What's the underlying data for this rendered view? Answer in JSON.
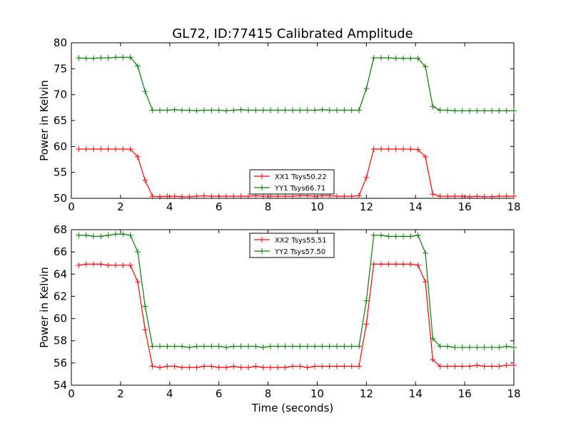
{
  "title": "GL72, ID:77415 Calibrated Amplitude",
  "colors": {
    "XX": "#ff0000",
    "YY": "#008000",
    "axis": "#000000",
    "background": "#ffffff"
  },
  "chart_data": [
    {
      "type": "line",
      "title": "GL72, ID:77415 Calibrated Amplitude",
      "xlabel": "",
      "ylabel": "Power in Kelvin",
      "xlim": [
        0,
        18
      ],
      "ylim": [
        50,
        80
      ],
      "xticks": [
        0,
        2,
        4,
        6,
        8,
        10,
        12,
        14,
        16,
        18
      ],
      "yticks": [
        50,
        55,
        60,
        65,
        70,
        75,
        80
      ],
      "grid": false,
      "legend_position": "bottom-center",
      "marker": "plus",
      "x": [
        0.3,
        0.6,
        0.9,
        1.2,
        1.5,
        1.8,
        2.1,
        2.4,
        2.7,
        3.0,
        3.3,
        3.6,
        3.9,
        4.2,
        4.5,
        4.8,
        5.1,
        5.4,
        5.7,
        6.0,
        6.3,
        6.6,
        6.9,
        7.2,
        7.5,
        7.8,
        8.1,
        8.4,
        8.7,
        9.0,
        9.3,
        9.6,
        9.9,
        10.2,
        10.5,
        10.8,
        11.1,
        11.4,
        11.7,
        12.0,
        12.3,
        12.6,
        12.9,
        13.2,
        13.5,
        13.8,
        14.1,
        14.4,
        14.7,
        15.0,
        15.3,
        15.6,
        15.9,
        16.2,
        16.5,
        16.8,
        17.1,
        17.4,
        17.7,
        18.0
      ],
      "series": [
        {
          "name": "XX1 Tsys50.22",
          "color": "#ff0000",
          "values": [
            59.5,
            59.5,
            59.5,
            59.5,
            59.5,
            59.5,
            59.5,
            59.5,
            58.0,
            53.5,
            50.4,
            50.3,
            50.4,
            50.4,
            50.3,
            50.3,
            50.4,
            50.5,
            50.4,
            50.4,
            50.4,
            50.4,
            50.4,
            50.4,
            50.5,
            50.4,
            50.4,
            50.4,
            50.4,
            50.4,
            50.5,
            50.5,
            50.4,
            50.5,
            50.5,
            50.4,
            50.4,
            50.4,
            50.5,
            54.0,
            59.5,
            59.5,
            59.5,
            59.5,
            59.5,
            59.5,
            59.4,
            58.0,
            50.8,
            50.4,
            50.4,
            50.4,
            50.4,
            50.3,
            50.4,
            50.3,
            50.3,
            50.4,
            50.4,
            50.4
          ]
        },
        {
          "name": "YY1 Tsys66.71",
          "color": "#008000",
          "values": [
            77.1,
            77.0,
            77.0,
            77.1,
            77.1,
            77.2,
            77.2,
            77.2,
            75.5,
            70.6,
            67.0,
            67.0,
            67.0,
            67.1,
            67.0,
            67.0,
            66.9,
            67.0,
            67.0,
            67.0,
            66.9,
            67.0,
            67.1,
            67.0,
            67.0,
            67.0,
            67.0,
            67.0,
            67.0,
            67.0,
            67.0,
            67.0,
            67.0,
            67.1,
            67.0,
            67.0,
            67.0,
            67.0,
            67.0,
            71.2,
            77.1,
            77.1,
            77.1,
            77.0,
            77.0,
            77.0,
            77.0,
            75.4,
            67.7,
            67.0,
            67.0,
            66.9,
            66.9,
            66.9,
            66.9,
            66.9,
            66.9,
            66.9,
            66.9,
            66.9
          ]
        }
      ]
    },
    {
      "type": "line",
      "title": "",
      "xlabel": "Time (seconds)",
      "ylabel": "Power in Kelvin",
      "xlim": [
        0,
        18
      ],
      "ylim": [
        54,
        68
      ],
      "xticks": [
        0,
        2,
        4,
        6,
        8,
        10,
        12,
        14,
        16,
        18
      ],
      "yticks": [
        54,
        56,
        58,
        60,
        62,
        64,
        66,
        68
      ],
      "grid": false,
      "legend_position": "top-center",
      "marker": "plus",
      "x": [
        0.3,
        0.6,
        0.9,
        1.2,
        1.5,
        1.8,
        2.1,
        2.4,
        2.7,
        3.0,
        3.3,
        3.6,
        3.9,
        4.2,
        4.5,
        4.8,
        5.1,
        5.4,
        5.7,
        6.0,
        6.3,
        6.6,
        6.9,
        7.2,
        7.5,
        7.8,
        8.1,
        8.4,
        8.7,
        9.0,
        9.3,
        9.6,
        9.9,
        10.2,
        10.5,
        10.8,
        11.1,
        11.4,
        11.7,
        12.0,
        12.3,
        12.6,
        12.9,
        13.2,
        13.5,
        13.8,
        14.1,
        14.4,
        14.7,
        15.0,
        15.3,
        15.6,
        15.9,
        16.2,
        16.5,
        16.8,
        17.1,
        17.4,
        17.7,
        18.0
      ],
      "series": [
        {
          "name": "XX2 Tsys55.51",
          "color": "#ff0000",
          "values": [
            64.8,
            64.9,
            64.9,
            64.9,
            64.8,
            64.8,
            64.8,
            64.8,
            63.3,
            59.0,
            55.7,
            55.6,
            55.7,
            55.7,
            55.6,
            55.6,
            55.6,
            55.7,
            55.7,
            55.6,
            55.6,
            55.7,
            55.6,
            55.6,
            55.7,
            55.6,
            55.6,
            55.6,
            55.6,
            55.7,
            55.7,
            55.6,
            55.7,
            55.7,
            55.7,
            55.7,
            55.7,
            55.7,
            55.7,
            59.5,
            64.9,
            64.9,
            64.9,
            64.9,
            64.9,
            64.9,
            64.8,
            63.3,
            56.3,
            55.7,
            55.7,
            55.7,
            55.7,
            55.7,
            55.8,
            55.7,
            55.7,
            55.7,
            55.8,
            55.8
          ]
        },
        {
          "name": "YY2 Tsys57.50",
          "color": "#008000",
          "values": [
            67.5,
            67.5,
            67.4,
            67.4,
            67.5,
            67.6,
            67.6,
            67.5,
            66.0,
            61.1,
            57.5,
            57.5,
            57.5,
            57.5,
            57.5,
            57.4,
            57.5,
            57.5,
            57.5,
            57.5,
            57.4,
            57.5,
            57.5,
            57.5,
            57.5,
            57.4,
            57.5,
            57.5,
            57.5,
            57.5,
            57.5,
            57.5,
            57.5,
            57.5,
            57.5,
            57.5,
            57.5,
            57.5,
            57.5,
            61.6,
            67.5,
            67.5,
            67.4,
            67.4,
            67.4,
            67.4,
            67.5,
            65.9,
            58.2,
            57.5,
            57.5,
            57.4,
            57.4,
            57.4,
            57.4,
            57.4,
            57.4,
            57.4,
            57.5,
            57.4
          ]
        }
      ]
    }
  ]
}
